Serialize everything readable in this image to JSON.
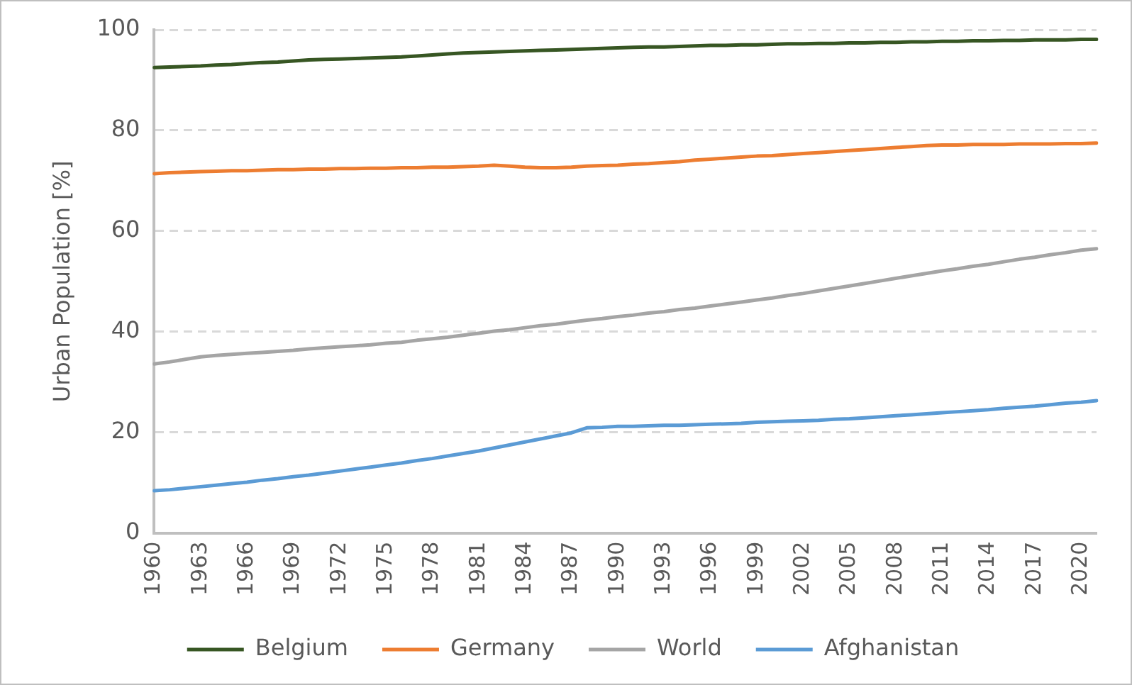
{
  "chart_data": {
    "type": "line",
    "ylabel": "Urban Population [%]",
    "categories": [
      "1960",
      null,
      null,
      "1963",
      null,
      null,
      "1966",
      null,
      null,
      "1969",
      null,
      null,
      "1972",
      null,
      null,
      "1975",
      null,
      null,
      "1978",
      null,
      null,
      "1981",
      null,
      null,
      "1984",
      null,
      null,
      "1987",
      null,
      null,
      "1990",
      null,
      null,
      "1993",
      null,
      null,
      "1996",
      null,
      null,
      "1999",
      null,
      null,
      "2002",
      null,
      null,
      "2005",
      null,
      null,
      "2008",
      null,
      null,
      "2011",
      null,
      null,
      "2014",
      null,
      null,
      "2017",
      null,
      null,
      "2020",
      null
    ],
    "series": [
      {
        "name": "Belgium",
        "color": "#375623",
        "values": [
          92.5,
          92.6,
          92.7,
          92.8,
          93.0,
          93.1,
          93.3,
          93.5,
          93.6,
          93.8,
          94.0,
          94.1,
          94.2,
          94.3,
          94.4,
          94.5,
          94.6,
          94.8,
          95.0,
          95.2,
          95.4,
          95.5,
          95.6,
          95.7,
          95.8,
          95.9,
          96.0,
          96.1,
          96.2,
          96.3,
          96.4,
          96.5,
          96.6,
          96.6,
          96.7,
          96.8,
          96.9,
          96.9,
          97.0,
          97.0,
          97.1,
          97.2,
          97.2,
          97.3,
          97.3,
          97.4,
          97.4,
          97.5,
          97.5,
          97.6,
          97.6,
          97.7,
          97.7,
          97.8,
          97.8,
          97.9,
          97.9,
          98.0,
          98.0,
          98.0,
          98.1,
          98.1
        ]
      },
      {
        "name": "Germany",
        "color": "#ed7d31",
        "values": [
          71.4,
          71.6,
          71.7,
          71.8,
          71.9,
          72.0,
          72.0,
          72.1,
          72.2,
          72.2,
          72.3,
          72.3,
          72.4,
          72.4,
          72.5,
          72.5,
          72.6,
          72.6,
          72.7,
          72.7,
          72.8,
          72.9,
          73.1,
          72.9,
          72.7,
          72.6,
          72.6,
          72.7,
          72.9,
          73.0,
          73.1,
          73.3,
          73.4,
          73.6,
          73.8,
          74.1,
          74.3,
          74.5,
          74.7,
          74.9,
          75.0,
          75.2,
          75.4,
          75.6,
          75.8,
          76.0,
          76.2,
          76.4,
          76.6,
          76.8,
          77.0,
          77.1,
          77.1,
          77.2,
          77.2,
          77.2,
          77.3,
          77.3,
          77.3,
          77.4,
          77.4,
          77.5
        ]
      },
      {
        "name": "World",
        "color": "#a5a5a5",
        "values": [
          33.6,
          34.0,
          34.5,
          35.0,
          35.3,
          35.5,
          35.7,
          35.9,
          36.1,
          36.3,
          36.6,
          36.8,
          37.0,
          37.2,
          37.4,
          37.7,
          37.9,
          38.3,
          38.6,
          38.9,
          39.3,
          39.7,
          40.1,
          40.4,
          40.8,
          41.2,
          41.5,
          41.9,
          42.3,
          42.6,
          43.0,
          43.3,
          43.7,
          44.0,
          44.4,
          44.7,
          45.1,
          45.5,
          45.9,
          46.3,
          46.7,
          47.2,
          47.6,
          48.1,
          48.6,
          49.1,
          49.6,
          50.1,
          50.6,
          51.1,
          51.6,
          52.1,
          52.5,
          53.0,
          53.4,
          53.9,
          54.4,
          54.8,
          55.3,
          55.7,
          56.2,
          56.5
        ]
      },
      {
        "name": "Afghanistan",
        "color": "#5b9bd5",
        "values": [
          8.4,
          8.6,
          8.9,
          9.2,
          9.5,
          9.8,
          10.1,
          10.5,
          10.8,
          11.2,
          11.5,
          11.9,
          12.3,
          12.7,
          13.1,
          13.5,
          13.9,
          14.4,
          14.8,
          15.3,
          15.8,
          16.3,
          16.9,
          17.5,
          18.1,
          18.7,
          19.3,
          19.9,
          20.9,
          21.0,
          21.2,
          21.2,
          21.3,
          21.4,
          21.4,
          21.5,
          21.6,
          21.7,
          21.8,
          22.0,
          22.1,
          22.2,
          22.3,
          22.4,
          22.6,
          22.7,
          22.9,
          23.1,
          23.3,
          23.5,
          23.7,
          23.9,
          24.1,
          24.3,
          24.5,
          24.8,
          25.0,
          25.2,
          25.5,
          25.8,
          26.0,
          26.3
        ]
      }
    ],
    "ylim": [
      0,
      100
    ],
    "yticks": [
      0,
      20,
      40,
      60,
      80,
      100
    ],
    "grid": "y",
    "legend": "bottom",
    "marker": "none",
    "line_style": "solid"
  }
}
